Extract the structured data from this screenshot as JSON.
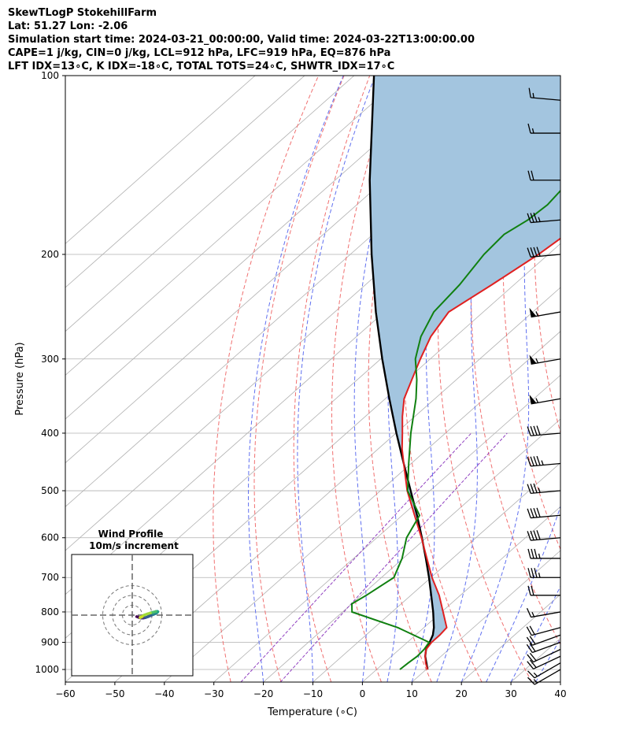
{
  "header": {
    "line1": "SkewTLogP StokehillFarm",
    "line2": "Lat: 51.27   Lon: -2.06",
    "line3": "Simulation start time: 2024-03-21_00:00:00, Valid time: 2024-03-22T13:00:00.00",
    "line4": "CAPE=1 j/kg, CIN=0 j/kg, LCL=912 hPa, LFC=919 hPa, EQ=876 hPa",
    "line5": "LFT IDX=13∘C, K IDX=-18∘C, TOTAL TOTS=24∘C, SHWTR_IDX=17∘C"
  },
  "chart_data": {
    "type": "skew-t log-p",
    "xlabel": "Temperature (∘C)",
    "ylabel": "Pressure (hPa)",
    "xlim": [
      -60,
      40
    ],
    "ylim": [
      1050,
      100
    ],
    "yscale": "log",
    "x_ticks": [
      -60,
      -50,
      -40,
      -30,
      -20,
      -10,
      0,
      10,
      20,
      30,
      40
    ],
    "x_tick_labels": [
      "−60",
      "−50",
      "−40",
      "−30",
      "−20",
      "−10",
      "0",
      "10",
      "20",
      "30",
      "40"
    ],
    "y_ticks": [
      1000,
      900,
      800,
      700,
      600,
      500,
      400,
      300,
      200,
      100
    ],
    "y_tick_labels": [
      "1000",
      "900",
      "800",
      "700",
      "600",
      "500",
      "400",
      "300",
      "200",
      "100"
    ],
    "grid": true,
    "colors": {
      "temperature": "#e02020",
      "dewpoint": "#108010",
      "parcel": "#000000",
      "cape_fill": "#a3c5df",
      "isotherm": "#b0b0b0",
      "dry_adiabat": "#f07070",
      "moist_adiabat": "#6070f0",
      "mixing_ratio": "#9040c0"
    },
    "temperature": {
      "pressure": [
        1000,
        975,
        950,
        925,
        900,
        875,
        850,
        800,
        750,
        700,
        650,
        600,
        550,
        500,
        450,
        425,
        400,
        375,
        350,
        325,
        300,
        275,
        250,
        225,
        200,
        185,
        175,
        165,
        150,
        140,
        130,
        120,
        110,
        100
      ],
      "temp": [
        10.3,
        8.4,
        6.8,
        5.4,
        4.9,
        4.9,
        4.6,
        0.3,
        -4.3,
        -9.8,
        -15.2,
        -21.0,
        -27.5,
        -34.6,
        -41.5,
        -45.2,
        -48.7,
        -52.5,
        -56.2,
        -59.0,
        -62.0,
        -65.0,
        -67.0,
        -64.5,
        -62.0,
        -61.0,
        -58.0,
        -54.5,
        -52.5,
        -52.0,
        -52.5,
        -52.0,
        -53.0,
        -53.5
      ]
    },
    "dewpoint": {
      "pressure": [
        1000,
        975,
        950,
        925,
        900,
        850,
        800,
        775,
        750,
        700,
        650,
        600,
        550,
        500,
        450,
        400,
        350,
        325,
        300,
        275,
        250,
        225,
        200,
        185,
        175,
        165,
        150,
        140,
        130,
        120,
        110,
        100
      ],
      "dewp": [
        4.7,
        4.9,
        5.2,
        5.0,
        4.4,
        -5.3,
        -18.1,
        -20.0,
        -19.0,
        -17.5,
        -20.2,
        -24.0,
        -26.5,
        -34.5,
        -40.5,
        -47.0,
        -53.8,
        -58.0,
        -63.0,
        -67.0,
        -70.0,
        -71.0,
        -73.0,
        -73.5,
        -72.0,
        -71.5,
        -72.5,
        -75.0,
        -76.0,
        -75.5,
        -76.0,
        -76.5
      ]
    },
    "parcel": {
      "pressure": [
        1000,
        950,
        925,
        900,
        875,
        850,
        800,
        750,
        700,
        650,
        600,
        550,
        500,
        450,
        400,
        350,
        300,
        250,
        200,
        150,
        100
      ],
      "temp": [
        10.3,
        6.8,
        5.4,
        4.5,
        3.5,
        2.0,
        -1.7,
        -5.9,
        -10.4,
        -15.4,
        -20.9,
        -27.0,
        -33.9,
        -41.5,
        -49.9,
        -59.2,
        -69.7,
        -81.7,
        -95.7,
        -113.0,
        -136.0
      ]
    },
    "wind_barbs": {
      "pressure": [
        1000,
        975,
        950,
        925,
        900,
        875,
        850,
        800,
        750,
        700,
        650,
        600,
        550,
        500,
        450,
        400,
        350,
        300,
        250,
        200,
        175,
        150,
        125,
        110
      ],
      "speed_kt": [
        15,
        15,
        20,
        20,
        20,
        20,
        20,
        15,
        20,
        35,
        35,
        40,
        40,
        35,
        45,
        40,
        55,
        55,
        55,
        40,
        35,
        20,
        15,
        15
      ],
      "direction_deg": [
        240,
        240,
        245,
        245,
        250,
        250,
        255,
        260,
        270,
        270,
        270,
        265,
        265,
        265,
        265,
        265,
        260,
        260,
        260,
        265,
        265,
        270,
        270,
        275
      ]
    },
    "hodograph": {
      "title": "Wind Profile",
      "subtitle": "10m/s increment",
      "rings_ms": [
        10,
        20,
        30
      ],
      "u_ms": [
        4.5,
        6.0,
        7.5,
        9.0,
        11.0,
        13.5,
        16.0,
        18.5,
        21.5,
        24.0,
        25.5,
        26.0,
        25.5,
        24.0,
        21.5,
        18.5,
        15.5,
        12.0,
        10.0,
        8.0,
        9.0
      ],
      "v_ms": [
        -1.5,
        -2.0,
        -2.6,
        -2.9,
        -3.0,
        -2.5,
        -1.6,
        -0.5,
        0.7,
        1.8,
        2.8,
        3.5,
        3.8,
        3.7,
        3.0,
        2.2,
        1.3,
        0.0,
        -1.5,
        -2.5,
        -1.8
      ],
      "colors": [
        "#440154",
        "#46327e",
        "#365c8d",
        "#277f8e",
        "#1fa187",
        "#4ac16d",
        "#a0da39",
        "#c8e020"
      ]
    }
  }
}
